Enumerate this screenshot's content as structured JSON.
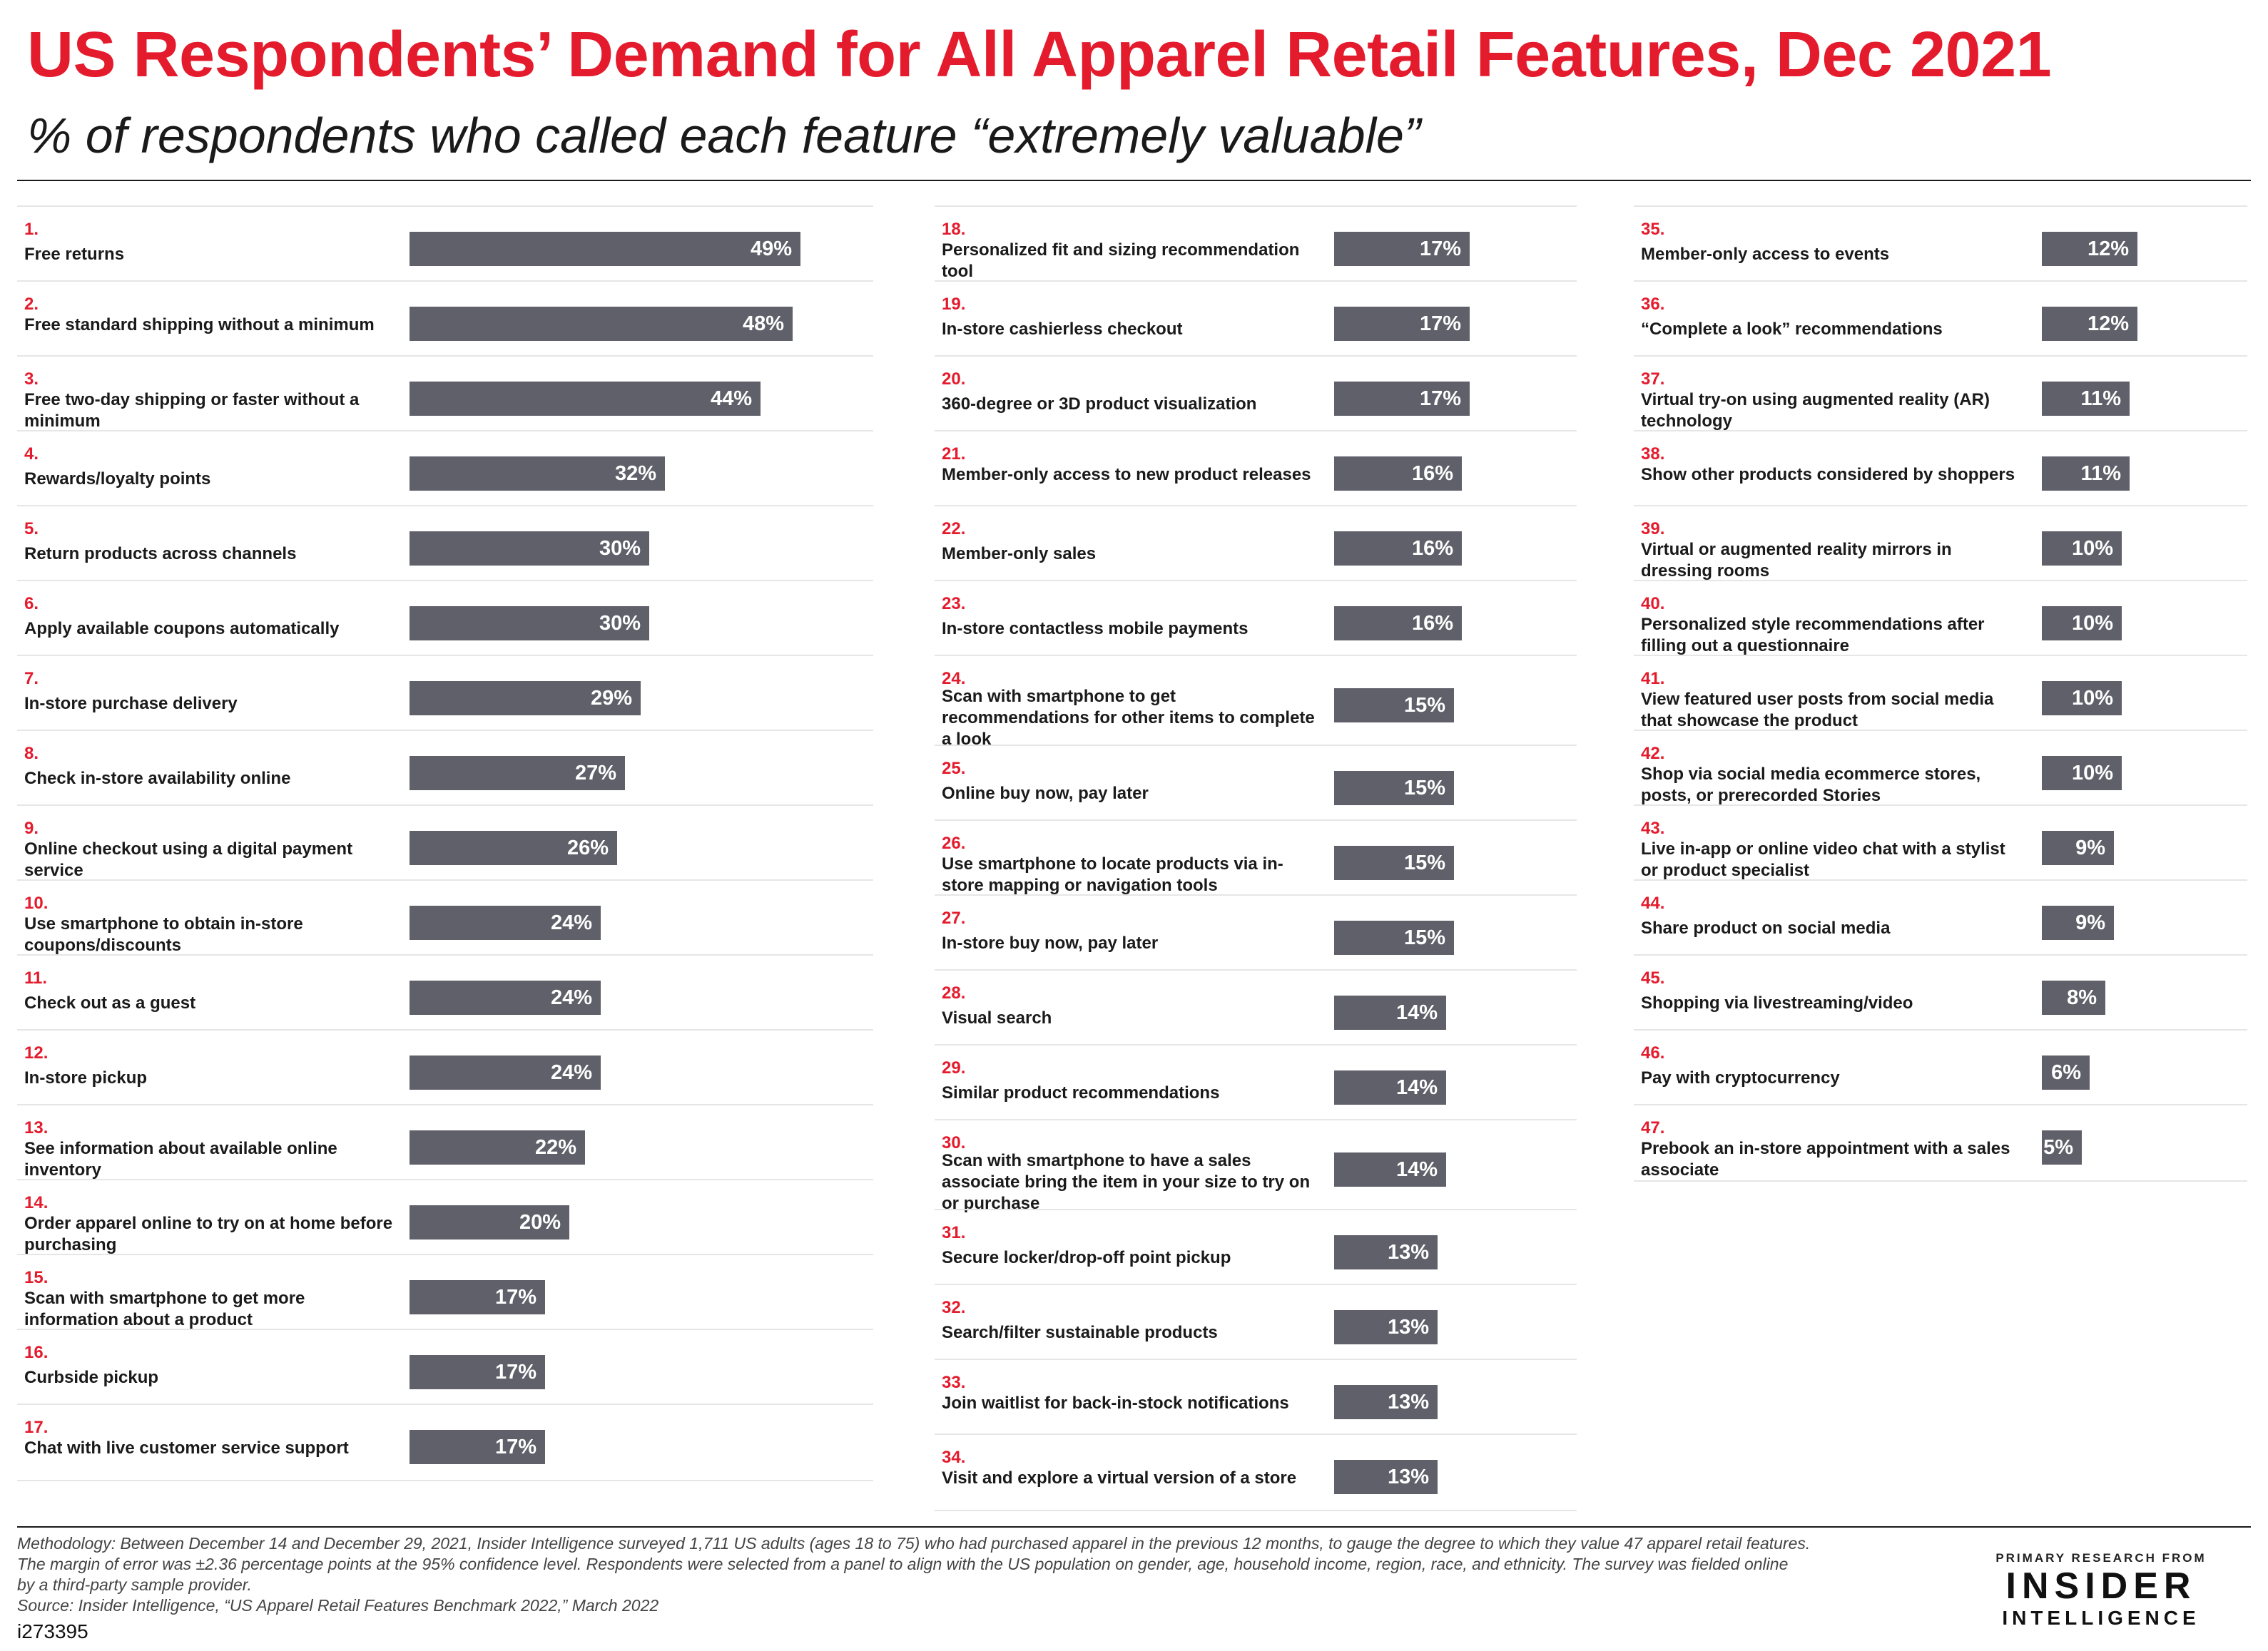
{
  "title": "US Respondents’ Demand for All Apparel Retail Features, Dec 2021",
  "subtitle": "% of respondents who called each feature “extremely valuable”",
  "chart_data": {
    "type": "bar",
    "orientation": "horizontal",
    "value_unit": "%",
    "xlim": [
      0,
      49
    ],
    "items": [
      {
        "rank": "1.",
        "label": "Free returns",
        "value": 49
      },
      {
        "rank": "2.",
        "label": "Free standard shipping without a minimum",
        "value": 48
      },
      {
        "rank": "3.",
        "label": "Free two-day shipping or faster without a minimum",
        "value": 44
      },
      {
        "rank": "4.",
        "label": "Rewards/loyalty points",
        "value": 32
      },
      {
        "rank": "5.",
        "label": "Return products across channels",
        "value": 30
      },
      {
        "rank": "6.",
        "label": "Apply available coupons automatically",
        "value": 30
      },
      {
        "rank": "7.",
        "label": "In-store purchase delivery",
        "value": 29
      },
      {
        "rank": "8.",
        "label": "Check in-store availability online",
        "value": 27
      },
      {
        "rank": "9.",
        "label": "Online checkout using a digital payment service",
        "value": 26
      },
      {
        "rank": "10.",
        "label": "Use smartphone to obtain in-store coupons/discounts",
        "value": 24
      },
      {
        "rank": "11.",
        "label": "Check out as a guest",
        "value": 24
      },
      {
        "rank": "12.",
        "label": "In-store pickup",
        "value": 24
      },
      {
        "rank": "13.",
        "label": "See information about available online inventory",
        "value": 22
      },
      {
        "rank": "14.",
        "label": "Order apparel online to try on at home before purchasing",
        "value": 20
      },
      {
        "rank": "15.",
        "label": "Scan with smartphone to get more information about a product",
        "value": 17
      },
      {
        "rank": "16.",
        "label": "Curbside pickup",
        "value": 17
      },
      {
        "rank": "17.",
        "label": "Chat with live customer service support",
        "value": 17
      },
      {
        "rank": "18.",
        "label": "Personalized fit and sizing recommendation tool",
        "value": 17
      },
      {
        "rank": "19.",
        "label": "In-store cashierless checkout",
        "value": 17
      },
      {
        "rank": "20.",
        "label": "360-degree or 3D product visualization",
        "value": 17
      },
      {
        "rank": "21.",
        "label": "Member-only access to new product releases",
        "value": 16
      },
      {
        "rank": "22.",
        "label": "Member-only sales",
        "value": 16
      },
      {
        "rank": "23.",
        "label": "In-store contactless mobile payments",
        "value": 16
      },
      {
        "rank": "24.",
        "label": "Scan with smartphone to get recommendations for other items to complete a look",
        "value": 15
      },
      {
        "rank": "25.",
        "label": "Online buy now, pay later",
        "value": 15
      },
      {
        "rank": "26.",
        "label": "Use smartphone to locate products via in-store mapping or navigation tools",
        "value": 15
      },
      {
        "rank": "27.",
        "label": "In-store buy now, pay later",
        "value": 15
      },
      {
        "rank": "28.",
        "label": "Visual search",
        "value": 14
      },
      {
        "rank": "29.",
        "label": "Similar product recommendations",
        "value": 14
      },
      {
        "rank": "30.",
        "label": "Scan with smartphone to have a sales associate bring the item in your size to try on or purchase",
        "value": 14
      },
      {
        "rank": "31.",
        "label": "Secure locker/drop-off point pickup",
        "value": 13
      },
      {
        "rank": "32.",
        "label": "Search/filter sustainable products",
        "value": 13
      },
      {
        "rank": "33.",
        "label": "Join waitlist for back-in-stock notifications",
        "value": 13
      },
      {
        "rank": "34.",
        "label": "Visit and explore a virtual version of a store",
        "value": 13
      },
      {
        "rank": "35.",
        "label": "Member-only access to events",
        "value": 12
      },
      {
        "rank": "36.",
        "label": "“Complete a look” recommendations",
        "value": 12
      },
      {
        "rank": "37.",
        "label": "Virtual try-on using augmented reality (AR) technology",
        "value": 11
      },
      {
        "rank": "38.",
        "label": "Show other products considered by shoppers",
        "value": 11
      },
      {
        "rank": "39.",
        "label": "Virtual or augmented reality mirrors in dressing rooms",
        "value": 10
      },
      {
        "rank": "40.",
        "label": "Personalized style recommendations after filling out a questionnaire",
        "value": 10
      },
      {
        "rank": "41.",
        "label": "View featured user posts from social media that showcase the product",
        "value": 10
      },
      {
        "rank": "42.",
        "label": "Shop via social media ecommerce stores, posts, or prerecorded Stories",
        "value": 10
      },
      {
        "rank": "43.",
        "label": "Live in-app or online video chat with a stylist or product specialist",
        "value": 9
      },
      {
        "rank": "44.",
        "label": "Share product on social media",
        "value": 9
      },
      {
        "rank": "45.",
        "label": "Shopping via livestreaming/video",
        "value": 8
      },
      {
        "rank": "46.",
        "label": "Pay with cryptocurrency",
        "value": 6
      },
      {
        "rank": "47.",
        "label": "Prebook an in-store appointment with a sales associate",
        "value": 5
      }
    ]
  },
  "footnote": {
    "methodology_lines": [
      "Methodology: Between December 14 and December 29, 2021, Insider Intelligence surveyed 1,711 US adults (ages 18 to 75) who had purchased apparel in the previous 12 months, to gauge the degree to which they value 47 apparel retail features.",
      "The margin of error was ±2.36 percentage points at the 95% confidence level. Respondents were selected from a panel to align with the US population on gender, age, household income, region, race, and ethnicity. The survey was fielded online",
      "by a third-party sample provider."
    ],
    "source": "Source: Insider Intelligence, “US Apparel Retail Features Benchmark 2022,” March 2022",
    "chart_id": "i273395"
  },
  "brand": {
    "tagline": "PRIMARY RESEARCH FROM",
    "name_top": "INSIDER",
    "name_bottom": "INTELLIGENCE"
  },
  "colors": {
    "accent": "#e41b2c",
    "bar": "#5f6069",
    "divider": "#e6e6e6"
  }
}
